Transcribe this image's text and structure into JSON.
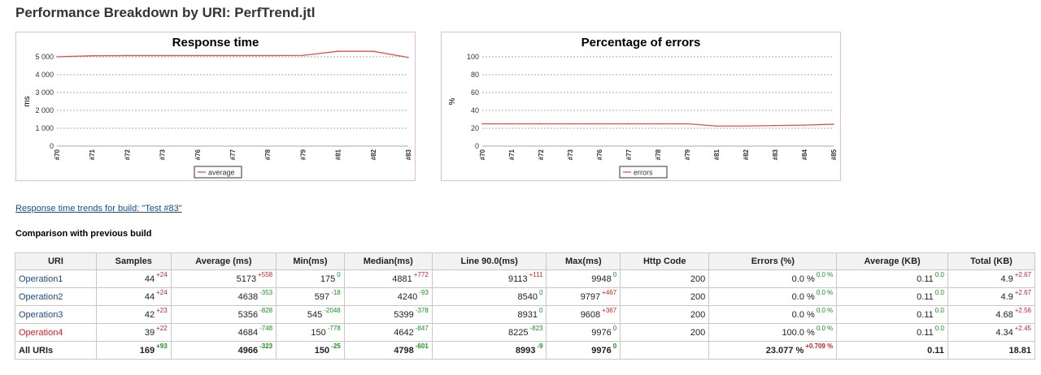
{
  "page": {
    "title": "Performance Breakdown by URI: PerfTrend.jtl"
  },
  "charts": [
    {
      "id": "response-time",
      "type": "line",
      "title": "Response time",
      "ylabel": "ms",
      "ylim": [
        0,
        5000
      ],
      "yticks": [
        0,
        1000,
        2000,
        3000,
        4000,
        5000
      ],
      "ytick_labels": [
        "0",
        "1 000",
        "2 000",
        "3 000",
        "4 000",
        "5 000"
      ],
      "categories": [
        "#70",
        "#71",
        "#72",
        "#73",
        "#76",
        "#77",
        "#78",
        "#79",
        "#81",
        "#82",
        "#83"
      ],
      "series": [
        {
          "name": "average",
          "color": "#e05050",
          "values": [
            5000,
            5060,
            5070,
            5070,
            5070,
            5070,
            5070,
            5080,
            5310,
            5310,
            4966
          ]
        }
      ],
      "legend_position": "bottom-center",
      "grid": true
    },
    {
      "id": "errors",
      "type": "line",
      "title": "Percentage of errors",
      "ylabel": "%",
      "ylim": [
        0,
        100
      ],
      "yticks": [
        0,
        20,
        40,
        60,
        80,
        100
      ],
      "ytick_labels": [
        "0",
        "20",
        "40",
        "60",
        "80",
        "100"
      ],
      "categories": [
        "#70",
        "#71",
        "#72",
        "#73",
        "#76",
        "#77",
        "#78",
        "#79",
        "#81",
        "#82",
        "#83",
        "#84",
        "#85"
      ],
      "series": [
        {
          "name": "errors",
          "color": "#e05050",
          "values": [
            25,
            25,
            25,
            25,
            25,
            25,
            25,
            25,
            22.5,
            22.5,
            23.1,
            23.5,
            24.5
          ]
        }
      ],
      "legend_position": "bottom-center",
      "grid": true
    }
  ],
  "trend_link": "Response time trends for build: \"Test #83\"",
  "comparison": {
    "heading": "Comparison with previous build",
    "columns": [
      "URI",
      "Samples",
      "Average (ms)",
      "Min(ms)",
      "Median(ms)",
      "Line 90.0(ms)",
      "Max(ms)",
      "Http Code",
      "Errors (%)",
      "Average (KB)",
      "Total (KB)"
    ],
    "rows": [
      {
        "uri": "Operation1",
        "error": false,
        "cells": [
          {
            "v": "44",
            "d": "+24",
            "c": "up"
          },
          {
            "v": "5173",
            "d": "+558",
            "c": "up"
          },
          {
            "v": "175",
            "d": "0",
            "c": "zero"
          },
          {
            "v": "4881",
            "d": "+772",
            "c": "up"
          },
          {
            "v": "9113",
            "d": "+111",
            "c": "up"
          },
          {
            "v": "9948",
            "d": "0",
            "c": "zero"
          },
          {
            "v": "200",
            "d": "",
            "c": ""
          },
          {
            "v": "0.0 %",
            "d": "0.0 %",
            "c": "zero"
          },
          {
            "v": "0.11",
            "d": "0.0",
            "c": "zero"
          },
          {
            "v": "4.9",
            "d": "+2.67",
            "c": "up"
          }
        ]
      },
      {
        "uri": "Operation2",
        "error": false,
        "cells": [
          {
            "v": "44",
            "d": "+24",
            "c": "up"
          },
          {
            "v": "4638",
            "d": "-353",
            "c": "down"
          },
          {
            "v": "597",
            "d": "-18",
            "c": "down"
          },
          {
            "v": "4240",
            "d": "-93",
            "c": "down"
          },
          {
            "v": "8540",
            "d": "0",
            "c": "zero"
          },
          {
            "v": "9797",
            "d": "+467",
            "c": "up"
          },
          {
            "v": "200",
            "d": "",
            "c": ""
          },
          {
            "v": "0.0 %",
            "d": "0.0 %",
            "c": "zero"
          },
          {
            "v": "0.11",
            "d": "0.0",
            "c": "zero"
          },
          {
            "v": "4.9",
            "d": "+2.67",
            "c": "up"
          }
        ]
      },
      {
        "uri": "Operation3",
        "error": false,
        "cells": [
          {
            "v": "42",
            "d": "+23",
            "c": "up"
          },
          {
            "v": "5356",
            "d": "-828",
            "c": "down"
          },
          {
            "v": "545",
            "d": "-2048",
            "c": "down"
          },
          {
            "v": "5399",
            "d": "-378",
            "c": "down"
          },
          {
            "v": "8931",
            "d": "0",
            "c": "zero"
          },
          {
            "v": "9608",
            "d": "+367",
            "c": "up"
          },
          {
            "v": "200",
            "d": "",
            "c": ""
          },
          {
            "v": "0.0 %",
            "d": "0.0 %",
            "c": "zero"
          },
          {
            "v": "0.11",
            "d": "0.0",
            "c": "zero"
          },
          {
            "v": "4.68",
            "d": "+2.56",
            "c": "up"
          }
        ]
      },
      {
        "uri": "Operation4",
        "error": true,
        "cells": [
          {
            "v": "39",
            "d": "+22",
            "c": "up"
          },
          {
            "v": "4684",
            "d": "-748",
            "c": "down"
          },
          {
            "v": "150",
            "d": "-778",
            "c": "down"
          },
          {
            "v": "4642",
            "d": "-847",
            "c": "down"
          },
          {
            "v": "8225",
            "d": "-823",
            "c": "down"
          },
          {
            "v": "9976",
            "d": "0",
            "c": "zero"
          },
          {
            "v": "200",
            "d": "",
            "c": ""
          },
          {
            "v": "100.0 %",
            "d": "0.0 %",
            "c": "zero"
          },
          {
            "v": "0.11",
            "d": "0.0",
            "c": "zero"
          },
          {
            "v": "4.34",
            "d": "+2.45",
            "c": "up"
          }
        ]
      }
    ],
    "total": {
      "uri": "All URIs",
      "cells": [
        {
          "v": "169",
          "d": "+93",
          "c": "down"
        },
        {
          "v": "4966",
          "d": "-323",
          "c": "down"
        },
        {
          "v": "150",
          "d": "-25",
          "c": "down"
        },
        {
          "v": "4798",
          "d": "-601",
          "c": "down"
        },
        {
          "v": "8993",
          "d": "-9",
          "c": "down"
        },
        {
          "v": "9976",
          "d": "0",
          "c": "zero"
        },
        {
          "v": "",
          "d": "",
          "c": ""
        },
        {
          "v": "23.077 %",
          "d": "+0.709 %",
          "c": "up"
        },
        {
          "v": "0.11",
          "d": "",
          "c": ""
        },
        {
          "v": "18.81",
          "d": "",
          "c": ""
        }
      ]
    }
  },
  "colors": {
    "increase": "#d42020",
    "decrease": "#16941a",
    "link": "#1a4c8a",
    "series": "#e05050"
  }
}
